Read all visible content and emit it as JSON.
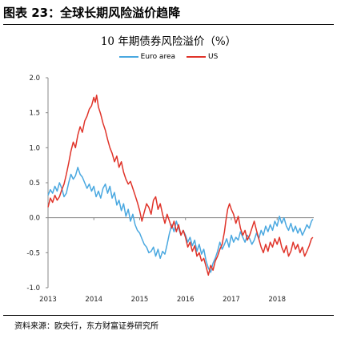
{
  "figure": {
    "caption": "图表 23：全球长期风险溢价趋降",
    "source": "资料来源：欧央行，东方财富证券研究所"
  },
  "chart_data": {
    "type": "line",
    "title": "10 年期债券风险溢价（%）",
    "xlabel": "",
    "ylabel": "",
    "xlim": [
      2013.0,
      2018.8
    ],
    "ylim": [
      -1.0,
      2.0
    ],
    "y_ticks": [
      "2.0",
      "1.5",
      "1.0",
      "0.5",
      "0.0",
      "-0.5",
      "-1.0"
    ],
    "x_ticks": [
      "2013",
      "2014",
      "2015",
      "2016",
      "2017",
      "2018"
    ],
    "grid": false,
    "legend_position": "top-center",
    "series": [
      {
        "name": "Euro area",
        "color": "#4aa8e0",
        "points": [
          [
            2013.0,
            0.32
          ],
          [
            2013.05,
            0.4
          ],
          [
            2013.1,
            0.35
          ],
          [
            2013.15,
            0.45
          ],
          [
            2013.2,
            0.38
          ],
          [
            2013.25,
            0.5
          ],
          [
            2013.3,
            0.42
          ],
          [
            2013.35,
            0.3
          ],
          [
            2013.4,
            0.35
          ],
          [
            2013.45,
            0.5
          ],
          [
            2013.5,
            0.62
          ],
          [
            2013.55,
            0.55
          ],
          [
            2013.6,
            0.6
          ],
          [
            2013.65,
            0.72
          ],
          [
            2013.7,
            0.62
          ],
          [
            2013.75,
            0.58
          ],
          [
            2013.8,
            0.5
          ],
          [
            2013.85,
            0.42
          ],
          [
            2013.9,
            0.48
          ],
          [
            2013.95,
            0.38
          ],
          [
            2014.0,
            0.45
          ],
          [
            2014.05,
            0.3
          ],
          [
            2014.1,
            0.38
          ],
          [
            2014.15,
            0.28
          ],
          [
            2014.2,
            0.42
          ],
          [
            2014.25,
            0.48
          ],
          [
            2014.3,
            0.35
          ],
          [
            2014.35,
            0.45
          ],
          [
            2014.4,
            0.28
          ],
          [
            2014.45,
            0.36
          ],
          [
            2014.5,
            0.18
          ],
          [
            2014.55,
            0.25
          ],
          [
            2014.6,
            0.1
          ],
          [
            2014.65,
            0.2
          ],
          [
            2014.7,
            0.02
          ],
          [
            2014.75,
            0.12
          ],
          [
            2014.8,
            -0.05
          ],
          [
            2014.85,
            0.05
          ],
          [
            2014.9,
            -0.1
          ],
          [
            2014.95,
            -0.18
          ],
          [
            2015.0,
            -0.22
          ],
          [
            2015.05,
            -0.3
          ],
          [
            2015.1,
            -0.38
          ],
          [
            2015.15,
            -0.42
          ],
          [
            2015.2,
            -0.5
          ],
          [
            2015.25,
            -0.48
          ],
          [
            2015.3,
            -0.42
          ],
          [
            2015.35,
            -0.55
          ],
          [
            2015.4,
            -0.45
          ],
          [
            2015.45,
            -0.58
          ],
          [
            2015.5,
            -0.48
          ],
          [
            2015.55,
            -0.52
          ],
          [
            2015.6,
            -0.38
          ],
          [
            2015.65,
            -0.22
          ],
          [
            2015.7,
            -0.1
          ],
          [
            2015.75,
            -0.2
          ],
          [
            2015.8,
            -0.05
          ],
          [
            2015.85,
            -0.15
          ],
          [
            2015.9,
            -0.25
          ],
          [
            2015.95,
            -0.18
          ],
          [
            2016.0,
            -0.25
          ],
          [
            2016.05,
            -0.35
          ],
          [
            2016.1,
            -0.28
          ],
          [
            2016.15,
            -0.4
          ],
          [
            2016.2,
            -0.32
          ],
          [
            2016.25,
            -0.48
          ],
          [
            2016.3,
            -0.38
          ],
          [
            2016.35,
            -0.52
          ],
          [
            2016.4,
            -0.45
          ],
          [
            2016.45,
            -0.62
          ],
          [
            2016.5,
            -0.72
          ],
          [
            2016.55,
            -0.78
          ],
          [
            2016.6,
            -0.65
          ],
          [
            2016.65,
            -0.58
          ],
          [
            2016.7,
            -0.48
          ],
          [
            2016.75,
            -0.35
          ],
          [
            2016.8,
            -0.45
          ],
          [
            2016.85,
            -0.38
          ],
          [
            2016.9,
            -0.3
          ],
          [
            2016.95,
            -0.42
          ],
          [
            2017.0,
            -0.25
          ],
          [
            2017.05,
            -0.35
          ],
          [
            2017.1,
            -0.28
          ],
          [
            2017.15,
            -0.32
          ],
          [
            2017.2,
            -0.2
          ],
          [
            2017.25,
            -0.28
          ],
          [
            2017.3,
            -0.35
          ],
          [
            2017.35,
            -0.25
          ],
          [
            2017.4,
            -0.3
          ],
          [
            2017.45,
            -0.38
          ],
          [
            2017.5,
            -0.32
          ],
          [
            2017.55,
            -0.22
          ],
          [
            2017.6,
            -0.3
          ],
          [
            2017.65,
            -0.18
          ],
          [
            2017.7,
            -0.25
          ],
          [
            2017.75,
            -0.12
          ],
          [
            2017.8,
            -0.2
          ],
          [
            2017.85,
            -0.1
          ],
          [
            2017.9,
            -0.18
          ],
          [
            2017.95,
            -0.05
          ],
          [
            2018.0,
            -0.12
          ],
          [
            2018.05,
            0.02
          ],
          [
            2018.1,
            -0.08
          ],
          [
            2018.15,
            0.0
          ],
          [
            2018.2,
            -0.12
          ],
          [
            2018.25,
            -0.18
          ],
          [
            2018.3,
            -0.08
          ],
          [
            2018.35,
            -0.2
          ],
          [
            2018.4,
            -0.12
          ],
          [
            2018.45,
            -0.22
          ],
          [
            2018.5,
            -0.15
          ],
          [
            2018.55,
            -0.25
          ],
          [
            2018.6,
            -0.18
          ],
          [
            2018.65,
            -0.1
          ],
          [
            2018.7,
            -0.15
          ],
          [
            2018.75,
            -0.05
          ],
          [
            2018.78,
            -0.02
          ]
        ]
      },
      {
        "name": "US",
        "color": "#e0342a",
        "points": [
          [
            2013.0,
            0.15
          ],
          [
            2013.05,
            0.28
          ],
          [
            2013.1,
            0.22
          ],
          [
            2013.15,
            0.32
          ],
          [
            2013.2,
            0.25
          ],
          [
            2013.25,
            0.3
          ],
          [
            2013.3,
            0.4
          ],
          [
            2013.35,
            0.48
          ],
          [
            2013.4,
            0.62
          ],
          [
            2013.45,
            0.78
          ],
          [
            2013.5,
            0.95
          ],
          [
            2013.55,
            1.08
          ],
          [
            2013.6,
            1.0
          ],
          [
            2013.65,
            1.18
          ],
          [
            2013.7,
            1.3
          ],
          [
            2013.75,
            1.22
          ],
          [
            2013.8,
            1.38
          ],
          [
            2013.85,
            1.45
          ],
          [
            2013.9,
            1.55
          ],
          [
            2013.95,
            1.6
          ],
          [
            2014.0,
            1.72
          ],
          [
            2014.03,
            1.65
          ],
          [
            2014.06,
            1.75
          ],
          [
            2014.1,
            1.58
          ],
          [
            2014.15,
            1.48
          ],
          [
            2014.2,
            1.35
          ],
          [
            2014.25,
            1.25
          ],
          [
            2014.3,
            1.12
          ],
          [
            2014.35,
            1.0
          ],
          [
            2014.4,
            0.92
          ],
          [
            2014.45,
            0.8
          ],
          [
            2014.5,
            0.88
          ],
          [
            2014.55,
            0.72
          ],
          [
            2014.6,
            0.8
          ],
          [
            2014.65,
            0.65
          ],
          [
            2014.7,
            0.55
          ],
          [
            2014.75,
            0.48
          ],
          [
            2014.8,
            0.52
          ],
          [
            2014.85,
            0.42
          ],
          [
            2014.9,
            0.32
          ],
          [
            2014.95,
            0.22
          ],
          [
            2015.0,
            0.1
          ],
          [
            2015.05,
            -0.05
          ],
          [
            2015.1,
            0.08
          ],
          [
            2015.15,
            0.2
          ],
          [
            2015.2,
            0.15
          ],
          [
            2015.25,
            0.05
          ],
          [
            2015.3,
            0.25
          ],
          [
            2015.35,
            0.3
          ],
          [
            2015.4,
            0.12
          ],
          [
            2015.45,
            0.2
          ],
          [
            2015.5,
            0.05
          ],
          [
            2015.55,
            -0.08
          ],
          [
            2015.6,
            0.05
          ],
          [
            2015.65,
            -0.05
          ],
          [
            2015.7,
            -0.15
          ],
          [
            2015.75,
            -0.05
          ],
          [
            2015.8,
            -0.2
          ],
          [
            2015.85,
            -0.1
          ],
          [
            2015.9,
            -0.25
          ],
          [
            2015.95,
            -0.18
          ],
          [
            2016.0,
            -0.28
          ],
          [
            2016.05,
            -0.42
          ],
          [
            2016.1,
            -0.35
          ],
          [
            2016.15,
            -0.48
          ],
          [
            2016.2,
            -0.4
          ],
          [
            2016.25,
            -0.55
          ],
          [
            2016.3,
            -0.5
          ],
          [
            2016.35,
            -0.62
          ],
          [
            2016.4,
            -0.58
          ],
          [
            2016.45,
            -0.7
          ],
          [
            2016.5,
            -0.82
          ],
          [
            2016.55,
            -0.68
          ],
          [
            2016.6,
            -0.75
          ],
          [
            2016.65,
            -0.62
          ],
          [
            2016.7,
            -0.55
          ],
          [
            2016.75,
            -0.45
          ],
          [
            2016.8,
            -0.38
          ],
          [
            2016.85,
            -0.2
          ],
          [
            2016.88,
            -0.05
          ],
          [
            2016.92,
            0.12
          ],
          [
            2016.96,
            0.2
          ],
          [
            2017.0,
            0.12
          ],
          [
            2017.05,
            0.05
          ],
          [
            2017.1,
            -0.08
          ],
          [
            2017.15,
            0.02
          ],
          [
            2017.2,
            -0.15
          ],
          [
            2017.25,
            -0.25
          ],
          [
            2017.3,
            -0.18
          ],
          [
            2017.35,
            -0.32
          ],
          [
            2017.4,
            -0.25
          ],
          [
            2017.45,
            -0.15
          ],
          [
            2017.5,
            -0.05
          ],
          [
            2017.55,
            -0.18
          ],
          [
            2017.6,
            -0.3
          ],
          [
            2017.65,
            -0.42
          ],
          [
            2017.7,
            -0.5
          ],
          [
            2017.75,
            -0.38
          ],
          [
            2017.8,
            -0.48
          ],
          [
            2017.85,
            -0.35
          ],
          [
            2017.9,
            -0.42
          ],
          [
            2017.95,
            -0.3
          ],
          [
            2018.0,
            -0.38
          ],
          [
            2018.05,
            -0.28
          ],
          [
            2018.1,
            -0.42
          ],
          [
            2018.15,
            -0.5
          ],
          [
            2018.2,
            -0.4
          ],
          [
            2018.25,
            -0.55
          ],
          [
            2018.3,
            -0.48
          ],
          [
            2018.35,
            -0.35
          ],
          [
            2018.4,
            -0.45
          ],
          [
            2018.45,
            -0.38
          ],
          [
            2018.5,
            -0.5
          ],
          [
            2018.55,
            -0.42
          ],
          [
            2018.6,
            -0.55
          ],
          [
            2018.65,
            -0.48
          ],
          [
            2018.7,
            -0.4
          ],
          [
            2018.75,
            -0.3
          ],
          [
            2018.78,
            -0.28
          ]
        ]
      }
    ]
  }
}
